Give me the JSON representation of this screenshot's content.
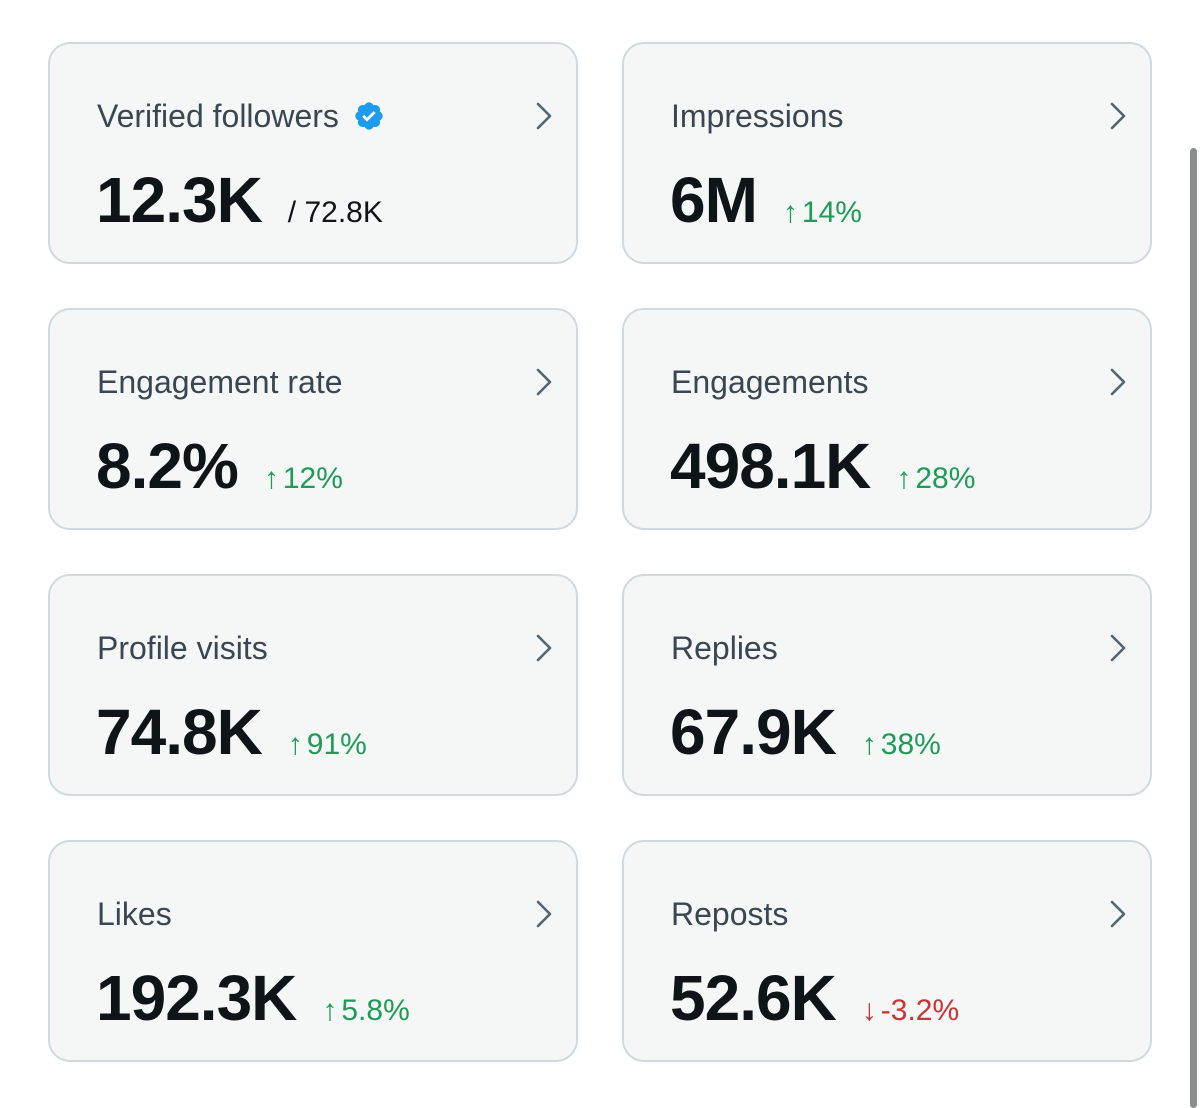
{
  "colors": {
    "up": "#1f9b57",
    "down": "#cc3333",
    "verified": "#1d9bf0"
  },
  "cards": [
    {
      "title": "Verified followers",
      "value": "12.3K",
      "sub": "/ 72.8K",
      "verified_icon": "verified-badge-icon"
    },
    {
      "title": "Impressions",
      "value": "6M",
      "delta": {
        "arrow": "↑",
        "text": "14%",
        "direction": "up"
      }
    },
    {
      "title": "Engagement rate",
      "value": "8.2%",
      "delta": {
        "arrow": "↑",
        "text": "12%",
        "direction": "up"
      }
    },
    {
      "title": "Engagements",
      "value": "498.1K",
      "delta": {
        "arrow": "↑",
        "text": "28%",
        "direction": "up"
      }
    },
    {
      "title": "Profile visits",
      "value": "74.8K",
      "delta": {
        "arrow": "↑",
        "text": "91%",
        "direction": "up"
      }
    },
    {
      "title": "Replies",
      "value": "67.9K",
      "delta": {
        "arrow": "↑",
        "text": "38%",
        "direction": "up"
      }
    },
    {
      "title": "Likes",
      "value": "192.3K",
      "delta": {
        "arrow": "↑",
        "text": "5.8%",
        "direction": "up"
      }
    },
    {
      "title": "Reposts",
      "value": "52.6K",
      "delta": {
        "arrow": "↓",
        "text": "-3.2%",
        "direction": "down"
      }
    }
  ]
}
